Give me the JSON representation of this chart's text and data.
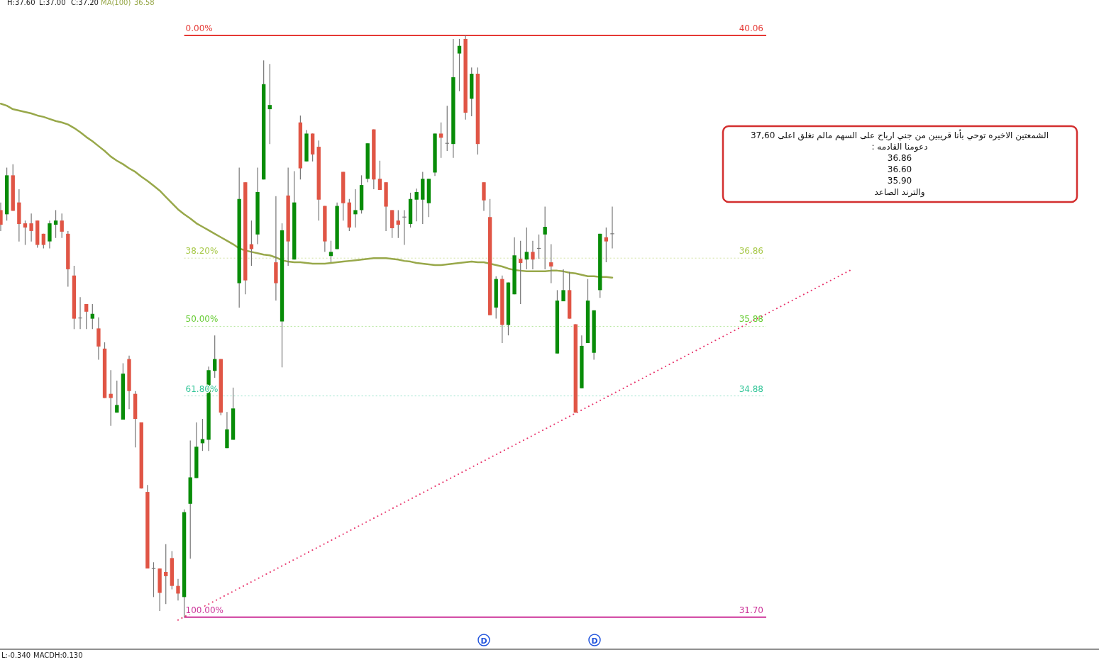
{
  "chart_data": {
    "type": "candlestick",
    "categories": [
      null,
      null,
      null,
      null,
      null,
      null,
      null,
      null,
      null,
      null,
      null,
      null,
      null,
      null,
      null,
      null,
      null,
      null,
      null,
      null,
      null,
      null,
      null,
      null,
      null,
      null,
      null,
      null,
      null,
      null,
      null,
      null,
      null,
      null,
      null,
      null,
      null,
      null,
      null,
      null,
      null,
      null,
      null,
      null,
      null,
      null,
      null,
      null,
      null,
      null,
      null,
      null,
      null,
      null,
      null,
      null,
      null,
      null,
      null,
      null,
      null,
      null,
      null,
      null,
      null,
      null,
      null,
      null,
      null,
      null,
      null,
      null,
      null,
      null,
      null,
      null,
      null,
      null,
      null,
      null,
      null,
      null,
      null,
      null,
      null,
      null,
      null,
      null,
      null,
      null,
      null,
      null,
      null,
      null,
      null,
      null,
      null,
      null,
      null,
      null,
      null,
      null,
      null,
      null,
      null,
      null,
      null,
      null,
      null,
      null,
      null,
      null,
      null,
      null,
      null,
      null,
      null,
      null,
      null,
      null,
      null,
      null,
      null,
      null,
      null,
      null,
      null,
      null,
      null,
      null,
      null,
      null,
      null,
      null,
      null,
      null,
      null,
      null,
      null,
      null
    ],
    "ohlc": [
      [
        37.55,
        37.66,
        37.25,
        37.34
      ],
      [
        37.49,
        38.16,
        37.4,
        38.05
      ],
      [
        38.05,
        38.21,
        37.54,
        37.54
      ],
      [
        37.66,
        37.85,
        37.1,
        37.35
      ],
      [
        37.36,
        37.4,
        37.05,
        37.3
      ],
      [
        37.36,
        37.5,
        37.1,
        37.25
      ],
      [
        37.4,
        37.4,
        37.01,
        37.05
      ],
      [
        37.21,
        37.21,
        37.0,
        37.05
      ],
      [
        37.1,
        37.4,
        37.0,
        37.36
      ],
      [
        37.34,
        37.55,
        37.15,
        37.4
      ],
      [
        37.4,
        37.5,
        37.15,
        37.24
      ],
      [
        37.21,
        37.25,
        36.45,
        36.7
      ],
      [
        36.61,
        36.75,
        35.84,
        35.99
      ],
      [
        36.0,
        36.3,
        35.84,
        35.99
      ],
      [
        36.2,
        36.2,
        35.84,
        36.09
      ],
      [
        35.99,
        36.2,
        35.84,
        36.06
      ],
      [
        35.85,
        36.01,
        35.4,
        35.59
      ],
      [
        35.56,
        35.65,
        34.85,
        34.85
      ],
      [
        34.91,
        35.25,
        34.45,
        34.85
      ],
      [
        34.64,
        35.1,
        34.64,
        34.75
      ],
      [
        34.54,
        35.35,
        34.54,
        35.2
      ],
      [
        35.41,
        35.46,
        34.69,
        34.95
      ],
      [
        34.91,
        34.95,
        34.14,
        34.55
      ],
      [
        34.5,
        34.5,
        33.55,
        33.55
      ],
      [
        33.5,
        33.6,
        32.4,
        32.4
      ],
      [
        32.4,
        32.49,
        31.99,
        32.4
      ],
      [
        32.4,
        32.4,
        31.79,
        32.05
      ],
      [
        32.35,
        32.75,
        31.89,
        32.29
      ],
      [
        32.55,
        32.65,
        32.1,
        32.15
      ],
      [
        32.15,
        32.25,
        31.94,
        32.04
      ],
      [
        31.99,
        33.25,
        31.7,
        33.21
      ],
      [
        33.33,
        34.24,
        32.54,
        33.71
      ],
      [
        33.7,
        34.5,
        33.7,
        34.15
      ],
      [
        34.2,
        34.55,
        34.09,
        34.26
      ],
      [
        34.25,
        35.3,
        34.09,
        35.25
      ],
      [
        35.24,
        35.75,
        35.14,
        35.41
      ],
      [
        35.41,
        35.41,
        34.6,
        34.64
      ],
      [
        34.13,
        34.65,
        34.13,
        34.4
      ],
      [
        34.25,
        35.0,
        34.25,
        34.7
      ],
      [
        36.5,
        38.16,
        36.15,
        37.71
      ],
      [
        37.95,
        37.95,
        36.34,
        36.54
      ],
      [
        37.06,
        37.4,
        36.75,
        36.99
      ],
      [
        37.2,
        38.16,
        37.06,
        37.81
      ],
      [
        37.99,
        39.7,
        37.99,
        39.36
      ],
      [
        39.0,
        39.65,
        38.5,
        39.06
      ],
      [
        36.8,
        37.75,
        36.25,
        36.5
      ],
      [
        35.95,
        37.36,
        35.29,
        37.26
      ],
      [
        37.76,
        38.16,
        36.75,
        37.1
      ],
      [
        36.84,
        38.11,
        36.84,
        37.66
      ],
      [
        38.81,
        38.91,
        37.99,
        38.15
      ],
      [
        38.25,
        38.7,
        38.25,
        38.65
      ],
      [
        38.65,
        38.65,
        38.25,
        38.35
      ],
      [
        38.46,
        38.55,
        37.4,
        37.7
      ],
      [
        37.61,
        37.61,
        36.95,
        37.1
      ],
      [
        36.89,
        37.11,
        36.8,
        36.95
      ],
      [
        36.99,
        37.66,
        36.99,
        37.61
      ],
      [
        38.1,
        38.1,
        37.4,
        37.65
      ],
      [
        37.66,
        37.71,
        37.25,
        37.3
      ],
      [
        37.49,
        37.85,
        37.3,
        37.55
      ],
      [
        37.55,
        38.05,
        37.5,
        37.91
      ],
      [
        38.0,
        38.51,
        37.95,
        38.51
      ],
      [
        38.71,
        38.71,
        37.85,
        37.99
      ],
      [
        38.0,
        38.26,
        37.84,
        37.84
      ],
      [
        37.95,
        37.95,
        37.25,
        37.6
      ],
      [
        37.55,
        37.55,
        37.15,
        37.29
      ],
      [
        37.4,
        37.55,
        37.15,
        37.34
      ],
      [
        37.45,
        37.55,
        37.05,
        37.45
      ],
      [
        37.35,
        37.8,
        37.3,
        37.71
      ],
      [
        37.7,
        37.86,
        37.39,
        37.81
      ],
      [
        37.7,
        38.1,
        37.35,
        38.0
      ],
      [
        37.65,
        38.0,
        37.45,
        38.0
      ],
      [
        38.09,
        38.65,
        38.04,
        38.65
      ],
      [
        38.65,
        38.81,
        38.3,
        38.59
      ],
      [
        38.51,
        39.05,
        38.4,
        38.51
      ],
      [
        38.5,
        40.01,
        38.3,
        39.46
      ],
      [
        39.8,
        40.01,
        39.26,
        39.91
      ],
      [
        40.01,
        40.06,
        38.85,
        38.95
      ],
      [
        39.15,
        39.6,
        38.9,
        39.51
      ],
      [
        39.51,
        39.6,
        38.35,
        38.5
      ],
      [
        37.95,
        37.95,
        37.54,
        37.69
      ],
      [
        37.45,
        37.71,
        36.04,
        36.04
      ],
      [
        36.15,
        36.6,
        35.99,
        36.56
      ],
      [
        36.56,
        36.61,
        35.64,
        35.9
      ],
      [
        35.9,
        36.51,
        35.75,
        36.51
      ],
      [
        36.34,
        37.16,
        36.34,
        36.9
      ],
      [
        36.85,
        37.11,
        36.2,
        36.79
      ],
      [
        36.84,
        37.3,
        36.7,
        36.95
      ],
      [
        36.95,
        37.11,
        36.7,
        36.84
      ],
      [
        37.0,
        37.2,
        36.85,
        37.0
      ],
      [
        37.2,
        37.6,
        36.7,
        37.31
      ],
      [
        36.8,
        37.06,
        36.5,
        36.74
      ],
      [
        35.49,
        36.4,
        35.49,
        36.25
      ],
      [
        36.24,
        36.7,
        36.24,
        36.4
      ],
      [
        36.4,
        36.66,
        35.99,
        35.99
      ],
      [
        35.91,
        35.91,
        34.64,
        34.64
      ],
      [
        34.99,
        35.75,
        34.99,
        35.6
      ],
      [
        35.64,
        36.56,
        35.64,
        36.25
      ],
      [
        35.5,
        36.11,
        35.4,
        36.11
      ],
      [
        36.4,
        37.21,
        36.29,
        37.21
      ],
      [
        37.16,
        37.3,
        36.8,
        37.1
      ],
      [
        37.21,
        37.6,
        37.0,
        37.2
      ],
      null,
      null,
      null,
      null,
      null,
      null,
      null,
      null,
      null,
      null,
      null,
      null,
      null,
      null,
      null,
      null,
      null,
      null,
      null,
      null,
      null,
      null,
      null,
      null,
      null,
      null,
      null,
      null,
      null,
      null,
      null,
      null,
      null,
      null,
      null,
      null,
      null,
      null,
      null
    ],
    "series": [
      {
        "type": "line",
        "name": "MA(100)",
        "color": "#98a84a",
        "line_style": "solid",
        "values": [
          39.08,
          39.05,
          39.0,
          38.98,
          38.96,
          38.94,
          38.91,
          38.89,
          38.86,
          38.83,
          38.81,
          38.78,
          38.73,
          38.67,
          38.6,
          38.54,
          38.47,
          38.4,
          38.32,
          38.26,
          38.21,
          38.15,
          38.1,
          38.03,
          37.97,
          37.9,
          37.83,
          37.74,
          37.65,
          37.56,
          37.49,
          37.43,
          37.36,
          37.31,
          37.26,
          37.21,
          37.16,
          37.11,
          37.06,
          37.0,
          36.97,
          36.95,
          36.93,
          36.91,
          36.9,
          36.87,
          36.83,
          36.81,
          36.8,
          36.8,
          36.79,
          36.78,
          36.78,
          36.78,
          36.79,
          36.8,
          36.81,
          36.82,
          36.83,
          36.84,
          36.85,
          36.86,
          36.86,
          36.86,
          36.85,
          36.84,
          36.82,
          36.81,
          36.79,
          36.78,
          36.77,
          36.76,
          36.76,
          36.77,
          36.78,
          36.79,
          36.8,
          36.81,
          36.8,
          36.8,
          36.78,
          36.76,
          36.74,
          36.71,
          36.69,
          36.68,
          36.67,
          36.67,
          36.67,
          36.67,
          36.68,
          36.68,
          36.67,
          36.65,
          36.64,
          36.62,
          36.6,
          36.6,
          36.59,
          36.59,
          36.58,
          null,
          null,
          null,
          null,
          null,
          null,
          null,
          null,
          null,
          null,
          null,
          null,
          null,
          null,
          null,
          null,
          null,
          null,
          null,
          null,
          null,
          null,
          null,
          null,
          null,
          null,
          null,
          null,
          null,
          null,
          null,
          null,
          null,
          null,
          null,
          null,
          null,
          null,
          null
        ]
      },
      {
        "type": "line",
        "color": "#e8336b",
        "line_style": "dotted",
        "values": [
          null,
          null,
          null,
          null,
          null,
          null,
          null,
          null,
          null,
          null,
          null,
          null,
          null,
          null,
          null,
          null,
          null,
          null,
          null,
          null,
          null,
          null,
          null,
          null,
          null,
          null,
          null,
          null,
          null,
          31.66,
          null,
          null,
          null,
          null,
          null,
          null,
          null,
          null,
          null,
          null,
          null,
          null,
          null,
          null,
          null,
          null,
          null,
          null,
          null,
          null,
          null,
          null,
          null,
          null,
          null,
          null,
          null,
          null,
          null,
          null,
          null,
          null,
          null,
          null,
          null,
          null,
          null,
          null,
          null,
          null,
          null,
          null,
          null,
          null,
          null,
          null,
          null,
          null,
          null,
          null,
          null,
          null,
          null,
          null,
          null,
          null,
          null,
          null,
          null,
          null,
          null,
          null,
          null,
          null,
          null,
          null,
          null,
          null,
          null,
          null,
          null,
          null,
          null,
          null,
          null,
          null,
          null,
          null,
          null,
          null,
          null,
          null,
          null,
          null,
          null,
          null,
          null,
          null,
          null,
          null,
          null,
          null,
          null,
          null,
          null,
          null,
          null,
          null,
          null,
          null,
          null,
          null,
          null,
          null,
          null,
          null,
          null,
          null,
          null,
          36.69
        ]
      }
    ],
    "ylim": [
      31.24,
      40.06
    ],
    "yticks": [
      {
        "value": 40.06,
        "label": "40.06"
      },
      {
        "value": 36.86,
        "label": "36.86"
      },
      {
        "value": 35.88,
        "label": "35.88"
      },
      {
        "value": 34.88,
        "label": "34.88"
      },
      {
        "value": 31.7,
        "label": "31.70"
      }
    ],
    "ref_lines": [
      {
        "axis": "y",
        "value": 40.06,
        "color": "#e53935",
        "line_style": "solid"
      },
      {
        "axis": "y",
        "value": 36.86,
        "color": "#a8c94a",
        "line_style": "dotted"
      },
      {
        "axis": "y",
        "value": 35.88,
        "color": "#66cc33",
        "line_style": "dotted"
      },
      {
        "axis": "y",
        "value": 34.88,
        "color": "#33c699",
        "line_style": "dotted"
      },
      {
        "axis": "y",
        "value": 31.7,
        "color": "#cc3399",
        "line_style": "solid"
      }
    ],
    "annotations": [
      "H:37.60",
      "L:37.00",
      "C:37.20",
      "36.58",
      "L:-0.340",
      "MACDH:0.130",
      "D",
      "D",
      "الشمعتين الاخيره توحي بأنا قريبين من جني ارباح على السهم مالم نغلق اعلى 37,60\nدعومنا القادمه :\n36.86\n36.60\n35.90\nوالترند الصاعد",
      {
        "text": "0.00%",
        "y": 40.06
      },
      {
        "text": "38.20%",
        "y": 36.86
      },
      {
        "text": "50.00%",
        "y": 35.88
      },
      {
        "text": "61.80%",
        "y": 34.88
      },
      {
        "text": "100.00%",
        "y": 31.7
      }
    ]
  }
}
